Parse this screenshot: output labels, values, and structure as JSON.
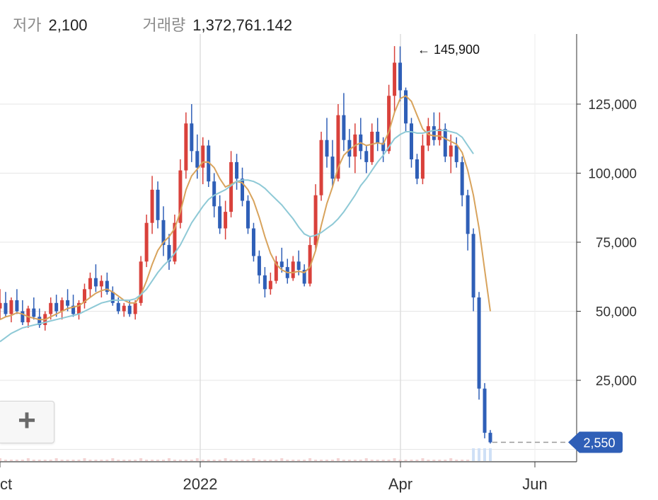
{
  "stats": {
    "low_label": "저가",
    "low_value": "2,100",
    "volume_label": "거래량",
    "volume_value": "1,372,761.142"
  },
  "zoom_button": {
    "icon": "plus-icon",
    "label": "+"
  },
  "chart_data": {
    "type": "candlestick",
    "x_ticks": [
      "Oct",
      "2022",
      "Apr",
      "Jun"
    ],
    "y_ticks": [
      "25,000",
      "50,000",
      "75,000",
      "100,000",
      "125,000"
    ],
    "y_tick_values": [
      25000,
      50000,
      75000,
      100000,
      125000
    ],
    "ylim": [
      0,
      150000
    ],
    "high_marker": {
      "label": "← 145,900",
      "value": 145900
    },
    "last_price": {
      "label": "2,550",
      "value": 2550
    },
    "grid": true,
    "colors": {
      "up": "#d9413b",
      "down": "#2f5fb7",
      "ma_short": "#d8a35c",
      "ma_long": "#8ec9d6",
      "last_price": "#2f5fb7"
    },
    "series": [
      {
        "name": "",
        "kind": "candles",
        "values": [
          [
            51000,
            58000,
            47000,
            53000
          ],
          [
            53000,
            57000,
            48000,
            49000
          ],
          [
            49000,
            55000,
            46000,
            54000
          ],
          [
            54000,
            58000,
            49000,
            50000
          ],
          [
            50000,
            54000,
            45000,
            46000
          ],
          [
            46000,
            52000,
            44000,
            51000
          ],
          [
            51000,
            55000,
            47000,
            48000
          ],
          [
            48000,
            51000,
            44000,
            45000
          ],
          [
            45000,
            50000,
            43000,
            49000
          ],
          [
            49000,
            55000,
            47000,
            53000
          ],
          [
            53000,
            56000,
            48000,
            50000
          ],
          [
            50000,
            55000,
            47000,
            54000
          ],
          [
            54000,
            58000,
            50000,
            52000
          ],
          [
            52000,
            56000,
            48000,
            49000
          ],
          [
            49000,
            54000,
            47000,
            53000
          ],
          [
            53000,
            60000,
            51000,
            58000
          ],
          [
            58000,
            64000,
            55000,
            62000
          ],
          [
            62000,
            67000,
            57000,
            59000
          ],
          [
            59000,
            63000,
            55000,
            61000
          ],
          [
            61000,
            64000,
            56000,
            57000
          ],
          [
            57000,
            59000,
            52000,
            53000
          ],
          [
            53000,
            55000,
            49000,
            50000
          ],
          [
            50000,
            53000,
            48000,
            52000
          ],
          [
            52000,
            54000,
            48000,
            49000
          ],
          [
            49000,
            54000,
            47000,
            53000
          ],
          [
            53000,
            70000,
            52000,
            68000
          ],
          [
            68000,
            85000,
            66000,
            82000
          ],
          [
            82000,
            99000,
            78000,
            94000
          ],
          [
            94000,
            97000,
            80000,
            83000
          ],
          [
            83000,
            88000,
            70000,
            74000
          ],
          [
            74000,
            78000,
            65000,
            68000
          ],
          [
            68000,
            85000,
            67000,
            82000
          ],
          [
            82000,
            105000,
            80000,
            101000
          ],
          [
            101000,
            122000,
            98000,
            118000
          ],
          [
            118000,
            125000,
            104000,
            108000
          ],
          [
            108000,
            114000,
            98000,
            102000
          ],
          [
            102000,
            113000,
            96000,
            110000
          ],
          [
            110000,
            112000,
            95000,
            97000
          ],
          [
            97000,
            100000,
            84000,
            88000
          ],
          [
            88000,
            92000,
            78000,
            80000
          ],
          [
            80000,
            90000,
            76000,
            86000
          ],
          [
            86000,
            108000,
            84000,
            104000
          ],
          [
            104000,
            107000,
            94000,
            98000
          ],
          [
            98000,
            102000,
            88000,
            90000
          ],
          [
            90000,
            92000,
            78000,
            80000
          ],
          [
            80000,
            82000,
            68000,
            70000
          ],
          [
            70000,
            72000,
            60000,
            63000
          ],
          [
            63000,
            66000,
            55000,
            58000
          ],
          [
            58000,
            64000,
            56000,
            61000
          ],
          [
            61000,
            70000,
            60000,
            68000
          ],
          [
            68000,
            73000,
            64000,
            66000
          ],
          [
            66000,
            69000,
            60000,
            62000
          ],
          [
            62000,
            70000,
            61000,
            68000
          ],
          [
            68000,
            72000,
            63000,
            65000
          ],
          [
            65000,
            67000,
            59000,
            60000
          ],
          [
            60000,
            77000,
            59000,
            74000
          ],
          [
            74000,
            96000,
            72000,
            92000
          ],
          [
            92000,
            115000,
            90000,
            112000
          ],
          [
            112000,
            120000,
            102000,
            106000
          ],
          [
            106000,
            112000,
            95000,
            98000
          ],
          [
            98000,
            125000,
            97000,
            121000
          ],
          [
            121000,
            129000,
            108000,
            112000
          ],
          [
            112000,
            116000,
            102000,
            106000
          ],
          [
            106000,
            118000,
            100000,
            114000
          ],
          [
            114000,
            120000,
            105000,
            108000
          ],
          [
            108000,
            110000,
            100000,
            104000
          ],
          [
            104000,
            118000,
            103000,
            115000
          ],
          [
            115000,
            120000,
            108000,
            111000
          ],
          [
            111000,
            113000,
            104000,
            108000
          ],
          [
            108000,
            132000,
            107000,
            128000
          ],
          [
            128000,
            146000,
            122000,
            140000
          ],
          [
            140000,
            145900,
            126000,
            130000
          ],
          [
            130000,
            131000,
            115000,
            118000
          ],
          [
            118000,
            120000,
            102000,
            105000
          ],
          [
            105000,
            107000,
            96000,
            98000
          ],
          [
            98000,
            114000,
            96000,
            110000
          ],
          [
            110000,
            120000,
            108000,
            117000
          ],
          [
            117000,
            122000,
            110000,
            112000
          ],
          [
            112000,
            122000,
            110000,
            116000
          ],
          [
            116000,
            118000,
            104000,
            106000
          ],
          [
            106000,
            114000,
            100000,
            110000
          ],
          [
            110000,
            113000,
            102000,
            104000
          ],
          [
            104000,
            106000,
            88000,
            92000
          ],
          [
            92000,
            94000,
            72000,
            78000
          ],
          [
            78000,
            80000,
            50000,
            55000
          ],
          [
            55000,
            57000,
            18000,
            22000
          ],
          [
            22000,
            24000,
            4000,
            6000
          ],
          [
            6000,
            7000,
            2100,
            2550
          ]
        ]
      },
      {
        "name": "",
        "kind": "ma_short",
        "values": [
          47000,
          48000,
          48500,
          49500,
          49000,
          48000,
          47500,
          47000,
          47000,
          48000,
          49000,
          50000,
          51000,
          51500,
          52000,
          53500,
          55000,
          56500,
          57500,
          58000,
          57000,
          55500,
          54000,
          53000,
          53000,
          56000,
          61000,
          67000,
          72000,
          75000,
          77000,
          80000,
          86000,
          94000,
          99000,
          101500,
          104000,
          104000,
          102000,
          98000,
          95000,
          96000,
          97000,
          96500,
          94000,
          90000,
          84000,
          77000,
          71000,
          67000,
          65000,
          64000,
          64000,
          64500,
          64000,
          66000,
          72000,
          81000,
          89000,
          95000,
          102000,
          106500,
          108500,
          110000,
          111000,
          110000,
          110500,
          111000,
          110500,
          115000,
          122000,
          127000,
          128000,
          126000,
          121000,
          116000,
          114000,
          113500,
          113500,
          112500,
          111500,
          110500,
          107500,
          101000,
          92000,
          80000,
          65000,
          50000
        ]
      },
      {
        "name": "",
        "kind": "ma_long",
        "values": [
          39000,
          40500,
          42000,
          43000,
          44000,
          44500,
          45000,
          45500,
          46000,
          46500,
          47000,
          47500,
          48000,
          48500,
          49000,
          50000,
          51000,
          52000,
          53000,
          53500,
          54000,
          54000,
          54000,
          54000,
          54500,
          56000,
          58000,
          61000,
          64000,
          66500,
          68500,
          71000,
          74000,
          78000,
          82000,
          85000,
          88000,
          90500,
          92000,
          93000,
          94000,
          95500,
          97000,
          97500,
          97500,
          97000,
          96000,
          94500,
          92500,
          90500,
          88500,
          86000,
          83500,
          80500,
          78000,
          77000,
          77500,
          78500,
          80000,
          81500,
          83500,
          86000,
          89000,
          92000,
          95500,
          98000,
          101000,
          104000,
          106500,
          109500,
          112500,
          114000,
          115000,
          115000,
          114500,
          114500,
          115000,
          115500,
          115500,
          115500,
          115000,
          114500,
          113000,
          110000,
          107000,
          null,
          null,
          null
        ]
      }
    ]
  }
}
